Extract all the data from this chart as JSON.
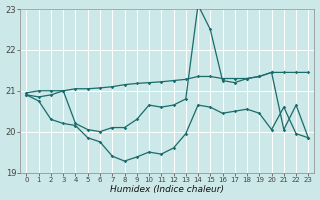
{
  "xlabel": "Humidex (Indice chaleur)",
  "background_color": "#cce8e8",
  "grid_color": "#ffffff",
  "line_color": "#1a6b6b",
  "xlim": [
    -0.5,
    23.5
  ],
  "ylim": [
    19,
    23
  ],
  "yticks": [
    19,
    20,
    21,
    22,
    23
  ],
  "xticks": [
    0,
    1,
    2,
    3,
    4,
    5,
    6,
    7,
    8,
    9,
    10,
    11,
    12,
    13,
    14,
    15,
    16,
    17,
    18,
    19,
    20,
    21,
    22,
    23
  ],
  "y_upper": [
    20.95,
    21.0,
    21.0,
    21.0,
    21.05,
    21.05,
    21.07,
    21.1,
    21.15,
    21.18,
    21.2,
    21.22,
    21.25,
    21.28,
    21.35,
    21.35,
    21.3,
    21.3,
    21.3,
    21.35,
    21.45,
    21.45,
    21.45,
    21.45
  ],
  "y_spike": [
    20.9,
    20.85,
    20.9,
    21.0,
    20.2,
    20.05,
    20.0,
    20.1,
    20.1,
    20.3,
    20.65,
    20.6,
    20.65,
    20.8,
    23.1,
    22.5,
    21.25,
    21.2,
    21.3,
    21.35,
    21.45,
    20.05,
    20.65,
    19.85
  ],
  "y_lower": [
    20.9,
    20.75,
    20.3,
    20.2,
    20.15,
    19.85,
    19.75,
    19.4,
    19.28,
    19.38,
    19.5,
    19.45,
    19.6,
    19.95,
    20.65,
    20.6,
    20.45,
    20.5,
    20.55,
    20.45,
    20.05,
    20.6,
    19.95,
    19.85
  ]
}
